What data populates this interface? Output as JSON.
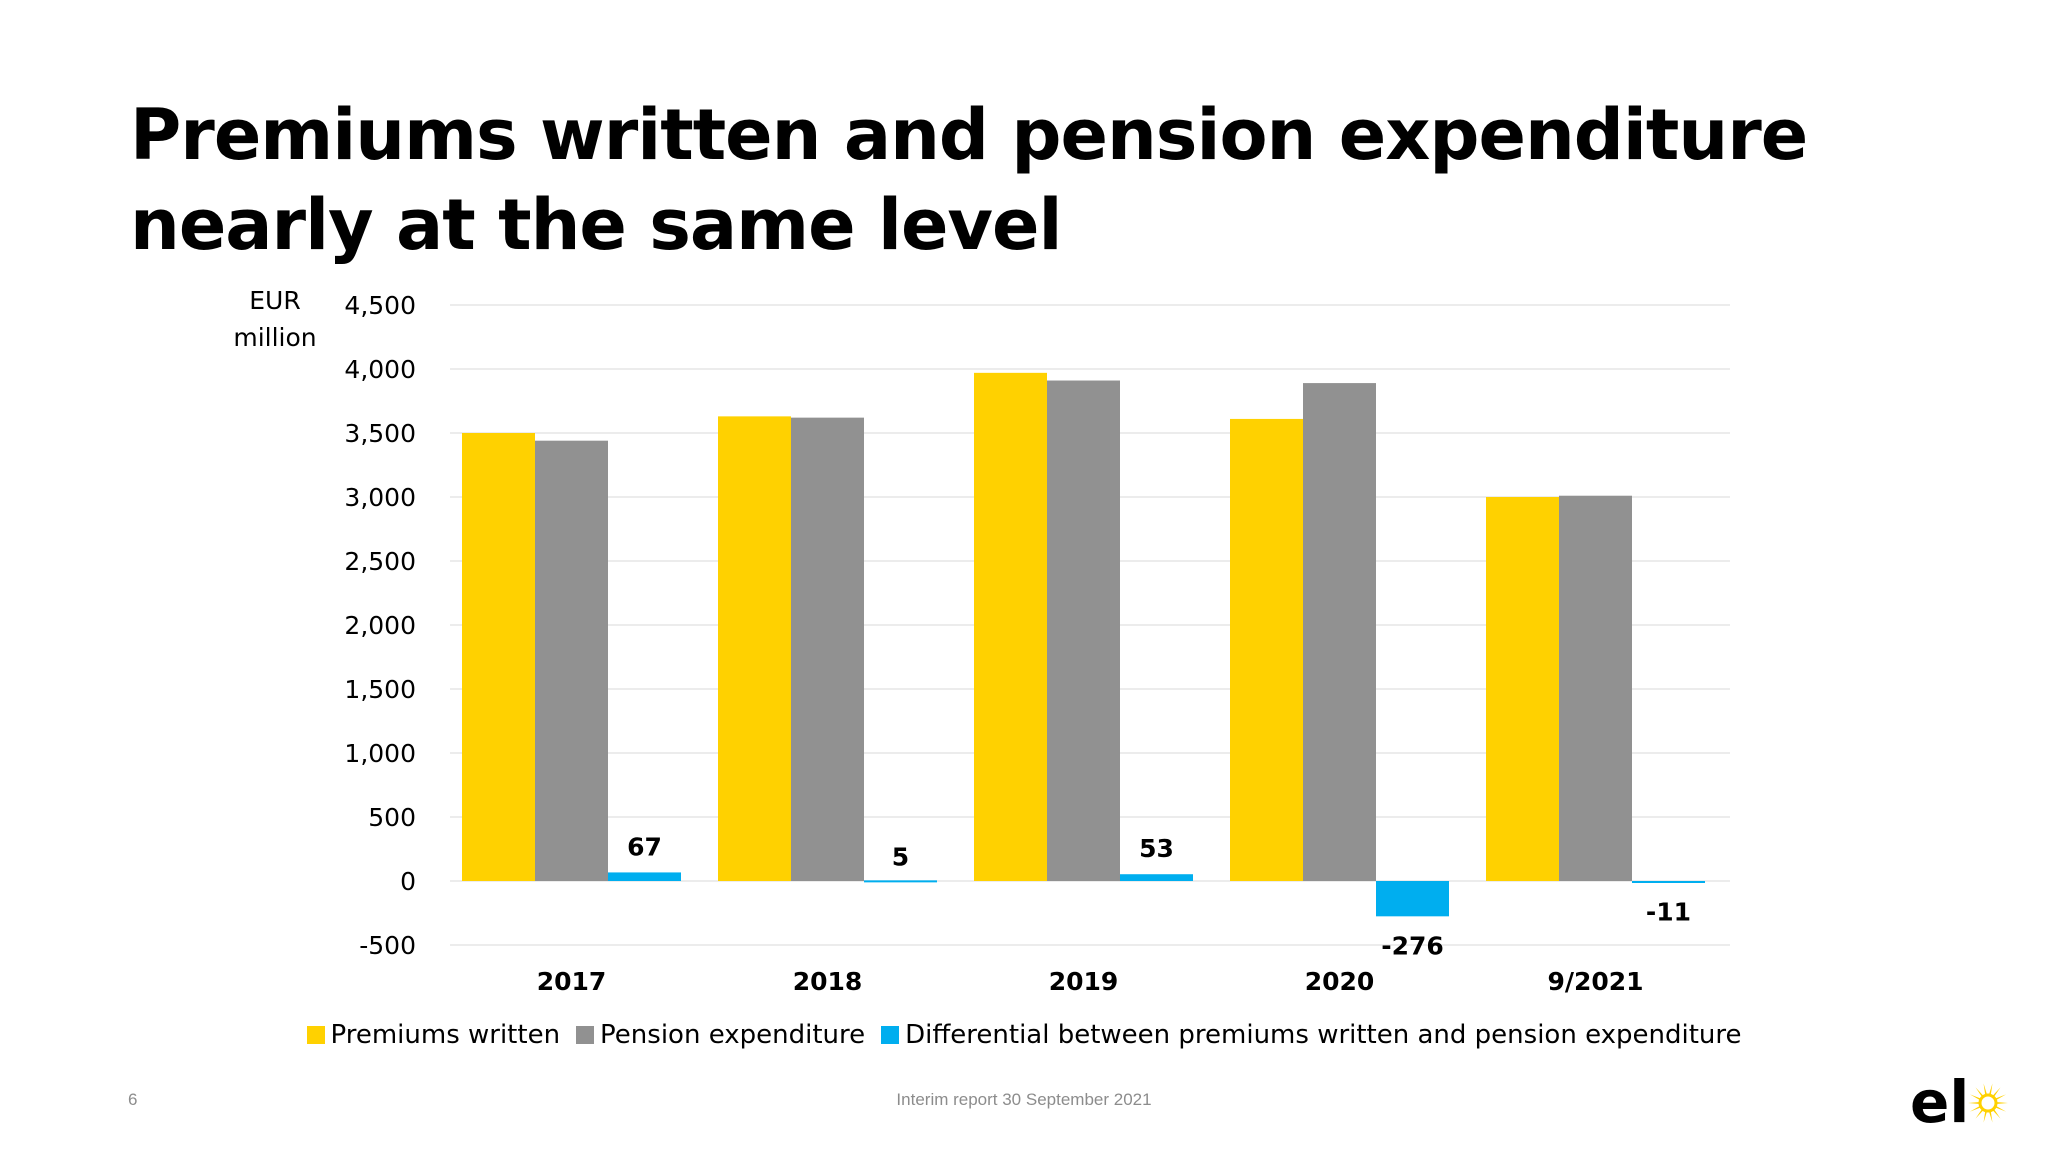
{
  "slide": {
    "title": "Premiums written and pension expenditure nearly at the same level",
    "page_number": "6",
    "footer": "Interim report 30 September 2021"
  },
  "logo": {
    "text": "el",
    "icon": "sun-icon",
    "color": "#FFD100"
  },
  "colors": {
    "premiums": "#FFD100",
    "pension": "#919191",
    "differential": "#00AEEF",
    "grid": "#e6e6e6"
  },
  "chart_data": {
    "type": "bar",
    "unit_label": [
      "EUR",
      "million"
    ],
    "categories": [
      "2017",
      "2018",
      "2019",
      "2020",
      "9/2021"
    ],
    "series": [
      {
        "name": "Premiums written",
        "values": [
          3500,
          3630,
          3970,
          3610,
          3000
        ]
      },
      {
        "name": "Pension expenditure",
        "values": [
          3440,
          3620,
          3910,
          3890,
          3010
        ]
      },
      {
        "name": "Differential between premiums written and pension expenditure",
        "values": [
          67,
          5,
          53,
          -276,
          -11
        ]
      }
    ],
    "data_labels": [
      "67",
      "5",
      "53",
      "-276",
      "-11"
    ],
    "y_ticks": [
      "4,500",
      "4,000",
      "3,500",
      "3,000",
      "2,500",
      "2,000",
      "1,500",
      "1,000",
      "500",
      "0",
      "-500"
    ],
    "ylim": [
      -500,
      4500
    ],
    "grid": true,
    "legend_position": "bottom"
  }
}
